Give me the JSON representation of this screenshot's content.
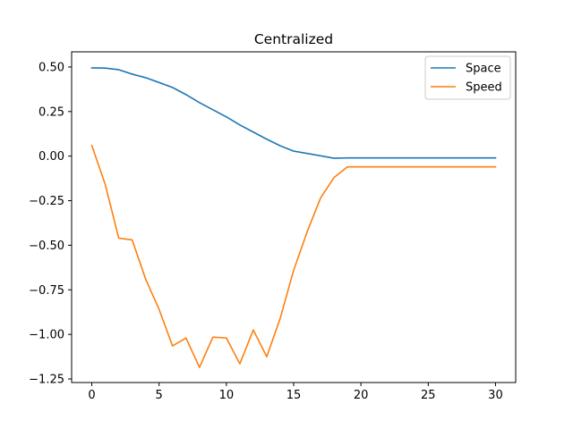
{
  "chart_data": {
    "type": "line",
    "title": "Centralized",
    "xlabel": "",
    "ylabel": "",
    "xlim": [
      -1.5,
      31.5
    ],
    "ylim": [
      -1.27,
      0.585
    ],
    "xticks": [
      0,
      5,
      10,
      15,
      20,
      25,
      30
    ],
    "yticks": [
      0.5,
      0.25,
      0.0,
      -0.25,
      -0.5,
      -0.75,
      -1.0,
      -1.25
    ],
    "ytick_labels": [
      "0.50",
      "0.25",
      "0.00",
      "−0.25",
      "−0.50",
      "−0.75",
      "−1.00",
      "−1.25"
    ],
    "xtick_labels": [
      "0",
      "5",
      "10",
      "15",
      "20",
      "25",
      "30"
    ],
    "grid": false,
    "legend_position": "top-right",
    "x": [
      0,
      1,
      2,
      3,
      4,
      5,
      6,
      7,
      8,
      9,
      10,
      11,
      12,
      13,
      14,
      15,
      16,
      17,
      18,
      19,
      20,
      21,
      22,
      23,
      24,
      25,
      26,
      27,
      28,
      29,
      30
    ],
    "series": [
      {
        "name": "Space",
        "color": "#1f77b4",
        "values": [
          0.495,
          0.494,
          0.485,
          0.46,
          0.44,
          0.413,
          0.385,
          0.345,
          0.3,
          0.26,
          0.22,
          0.175,
          0.135,
          0.095,
          0.058,
          0.028,
          0.015,
          0.002,
          -0.012,
          -0.01,
          -0.01,
          -0.01,
          -0.01,
          -0.01,
          -0.01,
          -0.01,
          -0.01,
          -0.01,
          -0.01,
          -0.01,
          -0.01
        ]
      },
      {
        "name": "Speed",
        "color": "#ff7f0e",
        "values": [
          0.06,
          -0.16,
          -0.46,
          -0.47,
          -0.69,
          -0.86,
          -1.065,
          -1.02,
          -1.185,
          -1.015,
          -1.02,
          -1.165,
          -0.975,
          -1.125,
          -0.91,
          -0.64,
          -0.425,
          -0.235,
          -0.12,
          -0.06,
          -0.06,
          -0.06,
          -0.06,
          -0.06,
          -0.06,
          -0.06,
          -0.06,
          -0.06,
          -0.06,
          -0.06,
          -0.06
        ]
      }
    ]
  }
}
